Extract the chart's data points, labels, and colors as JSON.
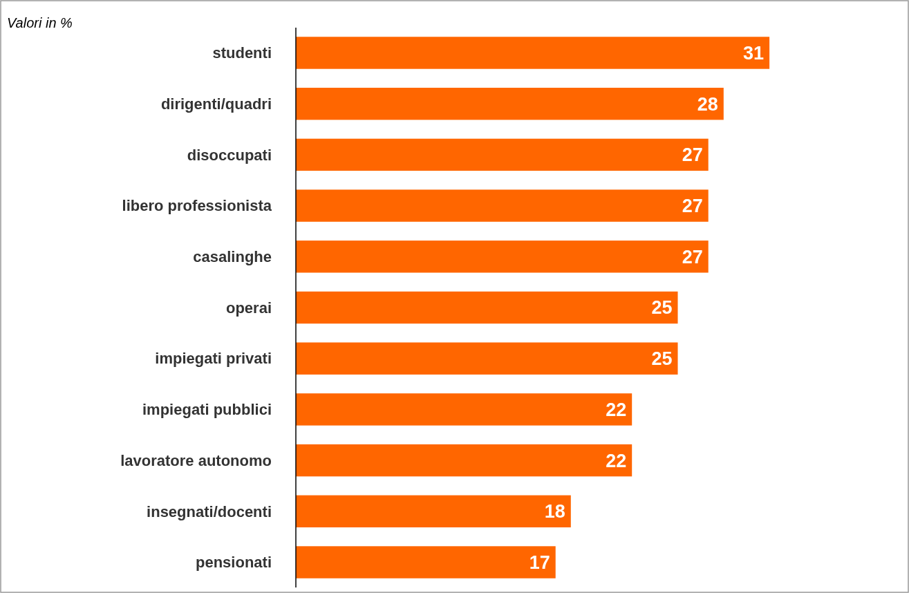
{
  "chart_data": {
    "type": "bar",
    "orientation": "horizontal",
    "categories": [
      "studenti",
      "dirigenti/quadri",
      "disoccupati",
      "libero professionista",
      "casalinghe",
      "operai",
      "impiegati privati",
      "impiegati pubblici",
      "lavoratore autonomo",
      "insegnati/docenti",
      "pensionati"
    ],
    "values": [
      31,
      28,
      27,
      27,
      27,
      25,
      25,
      22,
      22,
      18,
      17
    ],
    "color": "#ff6600",
    "xlim": [
      0,
      40
    ],
    "tick_labels": "y",
    "data_labels": true,
    "annotations": [
      "Valori in %"
    ]
  }
}
